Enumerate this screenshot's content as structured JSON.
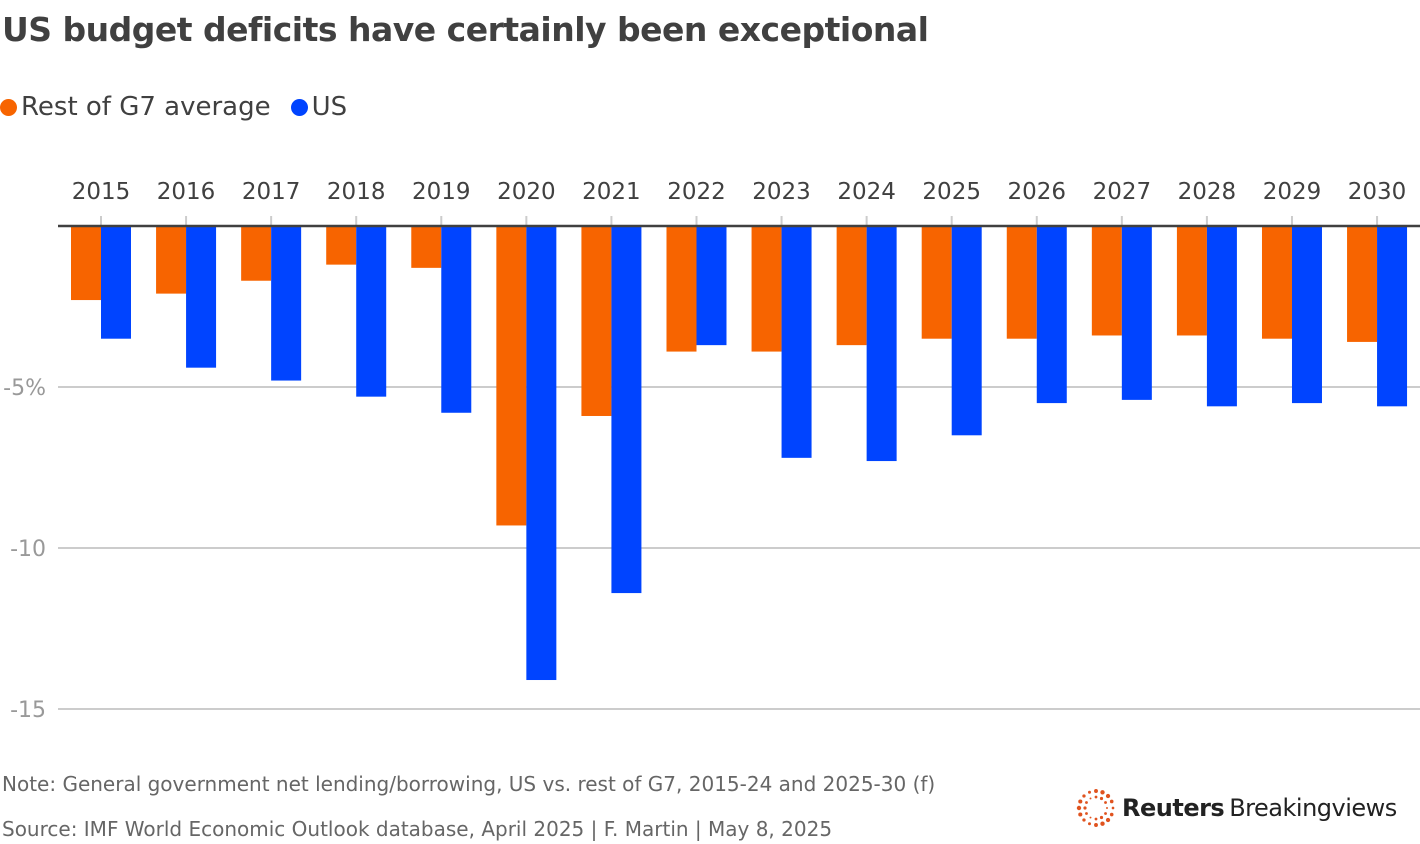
{
  "title": "US budget deficits have certainly been exceptional",
  "legend": [
    {
      "label": "Rest of G7 average",
      "color": "#f76400"
    },
    {
      "label": "US",
      "color": "#0044ff"
    }
  ],
  "footer": {
    "note": "Note: General government net lending/borrowing, US vs. rest of G7, 2015-24 and 2025-30 (f)",
    "source": "Source: IMF World Economic Outlook database, April 2025 | F. Martin | May 8, 2025",
    "logo_bold": "Reuters",
    "logo_regular": "Breakingviews",
    "logo_color": "#e0531f"
  },
  "chart_data": {
    "type": "bar",
    "title": "US budget deficits have certainly been exceptional",
    "xlabel": "",
    "ylabel": "",
    "categories": [
      "2015",
      "2016",
      "2017",
      "2018",
      "2019",
      "2020",
      "2021",
      "2022",
      "2023",
      "2024",
      "2025",
      "2026",
      "2027",
      "2028",
      "2029",
      "2030"
    ],
    "series": [
      {
        "name": "Rest of G7 average",
        "color": "#f76400",
        "values": [
          -2.3,
          -2.1,
          -1.7,
          -1.2,
          -1.3,
          -9.3,
          -5.9,
          -3.9,
          -3.9,
          -3.7,
          -3.5,
          -3.5,
          -3.4,
          -3.4,
          -3.5,
          -3.6
        ]
      },
      {
        "name": "US",
        "color": "#0044ff",
        "values": [
          -3.5,
          -4.4,
          -4.8,
          -5.3,
          -5.8,
          -14.1,
          -11.4,
          -3.7,
          -7.2,
          -7.3,
          -6.5,
          -5.5,
          -5.4,
          -5.6,
          -5.5,
          -5.6
        ]
      }
    ],
    "ylim": [
      -15,
      0
    ],
    "yticks": [
      {
        "value": -5,
        "label": "-5%"
      },
      {
        "value": -10,
        "label": "-10"
      },
      {
        "value": -15,
        "label": "-15"
      }
    ],
    "grid": true,
    "x_axis_position": "top",
    "legend_position": "top-left"
  }
}
